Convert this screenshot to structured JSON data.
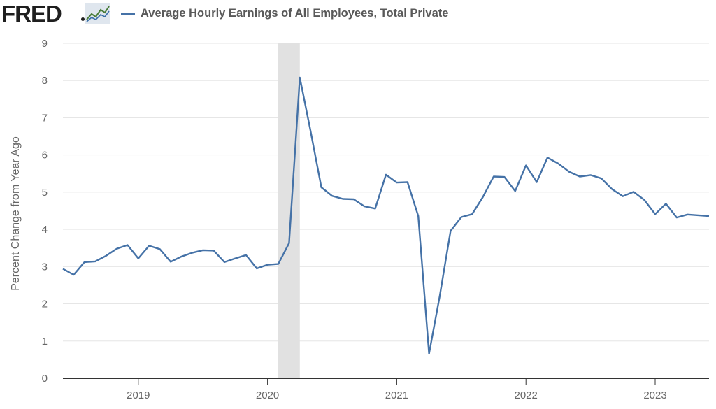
{
  "header": {
    "logo_text": "FRED",
    "logo_icon": "fred-line-chart-icon"
  },
  "chart_data": {
    "type": "line",
    "title": "Average Hourly Earnings of All Employees, Total Private",
    "ylabel": "Percent Change from Year Ago",
    "xlabel": "",
    "ylim": [
      0,
      9
    ],
    "yticks": [
      0,
      1,
      2,
      3,
      4,
      5,
      6,
      7,
      8,
      9
    ],
    "xticks": [
      "2019",
      "2020",
      "2021",
      "2022",
      "2023"
    ],
    "xlim": [
      "2018-06",
      "2023-06"
    ],
    "grid": true,
    "legend_position": "top-left",
    "colors": {
      "line": "#4572a7",
      "recession": "#e1e1e1",
      "grid": "#e6e6e6",
      "axis": "#333333"
    },
    "recession": [
      "2020-02",
      "2020-04"
    ],
    "series": [
      {
        "name": "Average Hourly Earnings of All Employees, Total Private",
        "x": [
          "2018-06",
          "2018-07",
          "2018-08",
          "2018-09",
          "2018-10",
          "2018-11",
          "2018-12",
          "2019-01",
          "2019-02",
          "2019-03",
          "2019-04",
          "2019-05",
          "2019-06",
          "2019-07",
          "2019-08",
          "2019-09",
          "2019-10",
          "2019-11",
          "2019-12",
          "2020-01",
          "2020-02",
          "2020-03",
          "2020-04",
          "2020-05",
          "2020-06",
          "2020-07",
          "2020-08",
          "2020-09",
          "2020-10",
          "2020-11",
          "2020-12",
          "2021-01",
          "2021-02",
          "2021-03",
          "2021-04",
          "2021-05",
          "2021-06",
          "2021-07",
          "2021-08",
          "2021-09",
          "2021-10",
          "2021-11",
          "2021-12",
          "2022-01",
          "2022-02",
          "2022-03",
          "2022-04",
          "2022-05",
          "2022-06",
          "2022-07",
          "2022-08",
          "2022-09",
          "2022-10",
          "2022-11",
          "2022-12",
          "2023-01",
          "2023-02",
          "2023-03",
          "2023-04",
          "2023-05",
          "2023-06"
        ],
        "values": [
          2.94,
          2.78,
          3.12,
          3.14,
          3.29,
          3.48,
          3.58,
          3.22,
          3.56,
          3.47,
          3.13,
          3.27,
          3.37,
          3.44,
          3.43,
          3.12,
          3.22,
          3.31,
          2.95,
          3.05,
          3.07,
          3.63,
          8.08,
          6.64,
          5.13,
          4.9,
          4.82,
          4.81,
          4.62,
          4.56,
          5.47,
          5.26,
          5.27,
          4.36,
          0.66,
          2.22,
          3.96,
          4.33,
          4.41,
          4.87,
          5.42,
          5.41,
          5.03,
          5.72,
          5.27,
          5.93,
          5.77,
          5.55,
          5.42,
          5.46,
          5.37,
          5.08,
          4.89,
          5.01,
          4.79,
          4.41,
          4.69,
          4.32,
          4.4,
          4.38,
          4.36
        ]
      }
    ]
  }
}
